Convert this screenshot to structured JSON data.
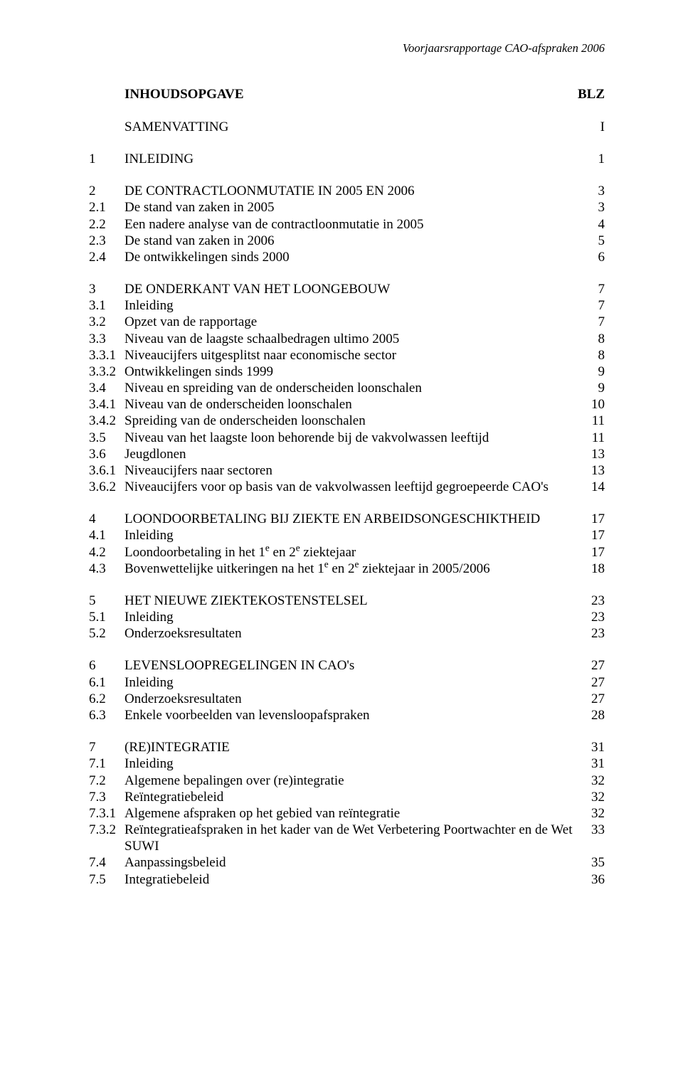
{
  "running_head": "Voorjaarsrapportage CAO-afspraken 2006",
  "toc_title": "INHOUDSOPGAVE",
  "toc_page_col": "BLZ",
  "summary_label": "SAMENVATTING",
  "summary_page": "I",
  "groups": [
    {
      "rows": [
        {
          "num": "1",
          "label": "INLEIDING",
          "page": "1"
        }
      ]
    },
    {
      "rows": [
        {
          "num": "2",
          "label": "DE CONTRACTLOONMUTATIE IN 2005 EN 2006",
          "page": "3"
        },
        {
          "num": "2.1",
          "label": "De stand van zaken in 2005",
          "page": "3"
        },
        {
          "num": "2.2",
          "label": "Een nadere analyse van de contractloonmutatie in 2005",
          "page": "4"
        },
        {
          "num": "2.3",
          "label": "De stand van zaken in 2006",
          "page": "5"
        },
        {
          "num": "2.4",
          "label": "De ontwikkelingen sinds 2000",
          "page": "6"
        }
      ]
    },
    {
      "rows": [
        {
          "num": "3",
          "label": "DE ONDERKANT VAN HET LOONGEBOUW",
          "page": "7"
        },
        {
          "num": "3.1",
          "label": "Inleiding",
          "page": "7"
        },
        {
          "num": "3.2",
          "label": "Opzet van de rapportage",
          "page": "7"
        },
        {
          "num": "3.3",
          "label": "Niveau van de laagste schaalbedragen ultimo 2005",
          "page": "8"
        },
        {
          "num": "3.3.1",
          "label": "Niveaucijfers uitgesplitst naar economische sector",
          "page": "8"
        },
        {
          "num": "3.3.2",
          "label": "Ontwikkelingen sinds 1999",
          "page": "9"
        },
        {
          "num": "3.4",
          "label": "Niveau en spreiding van de onderscheiden loonschalen",
          "page": "9"
        },
        {
          "num": "3.4.1",
          "label": "Niveau van de onderscheiden loonschalen",
          "page": "10"
        },
        {
          "num": "3.4.2",
          "label": "Spreiding van de onderscheiden loonschalen",
          "page": "11"
        },
        {
          "num": "3.5",
          "label": "Niveau van het laagste loon behorende bij de vakvolwassen leeftijd",
          "page": "11"
        },
        {
          "num": "3.6",
          "label": "Jeugdlonen",
          "page": "13"
        },
        {
          "num": "3.6.1",
          "label": "Niveaucijfers naar sectoren",
          "page": "13"
        },
        {
          "num": "3.6.2",
          "label": "Niveaucijfers voor op basis van de vakvolwassen leeftijd gegroepeerde CAO's",
          "page": "14"
        }
      ]
    },
    {
      "rows": [
        {
          "num": "4",
          "label": "LOONDOORBETALING BIJ ZIEKTE EN ARBEIDSONGESCHIKTHEID",
          "page": "17"
        },
        {
          "num": "4.1",
          "label": "Inleiding",
          "page": "17"
        },
        {
          "num": "4.2",
          "label_html": "Loondoorbetaling in het 1<sup>e</sup> en 2<sup>e</sup> ziektejaar",
          "page": "17"
        },
        {
          "num": "4.3",
          "label_html": "Bovenwettelijke uitkeringen na het 1<sup>e</sup> en 2<sup>e</sup> ziektejaar in 2005/2006",
          "page": "18"
        }
      ]
    },
    {
      "rows": [
        {
          "num": "5",
          "label": "HET NIEUWE ZIEKTEKOSTENSTELSEL",
          "page": "23"
        },
        {
          "num": "5.1",
          "label": "Inleiding",
          "page": "23"
        },
        {
          "num": "5.2",
          "label": "Onderzoeksresultaten",
          "page": "23"
        }
      ]
    },
    {
      "rows": [
        {
          "num": "6",
          "label": "LEVENSLOOPREGELINGEN IN CAO's",
          "page": "27"
        },
        {
          "num": "6.1",
          "label": "Inleiding",
          "page": "27"
        },
        {
          "num": "6.2",
          "label": "Onderzoeksresultaten",
          "page": "27"
        },
        {
          "num": "6.3",
          "label": "Enkele voorbeelden van levensloopafspraken",
          "page": "28"
        }
      ]
    },
    {
      "rows": [
        {
          "num": "7",
          "label": "(RE)INTEGRATIE",
          "page": "31"
        },
        {
          "num": "7.1",
          "label": "Inleiding",
          "page": "31"
        },
        {
          "num": "7.2",
          "label": "Algemene bepalingen over (re)integratie",
          "page": "32"
        },
        {
          "num": "7.3",
          "label": "Reïntegratiebeleid",
          "page": "32"
        },
        {
          "num": "7.3.1",
          "label": "Algemene afspraken op het gebied van reïntegratie",
          "page": "32"
        },
        {
          "num": "7.3.2",
          "label": "Reïntegratieafspraken in het kader van de Wet Verbetering Poortwachter en de Wet SUWI",
          "page": "33"
        },
        {
          "num": "7.4",
          "label": "Aanpassingsbeleid",
          "page": "35"
        },
        {
          "num": "7.5",
          "label": "Integratiebeleid",
          "page": "36"
        }
      ]
    }
  ]
}
